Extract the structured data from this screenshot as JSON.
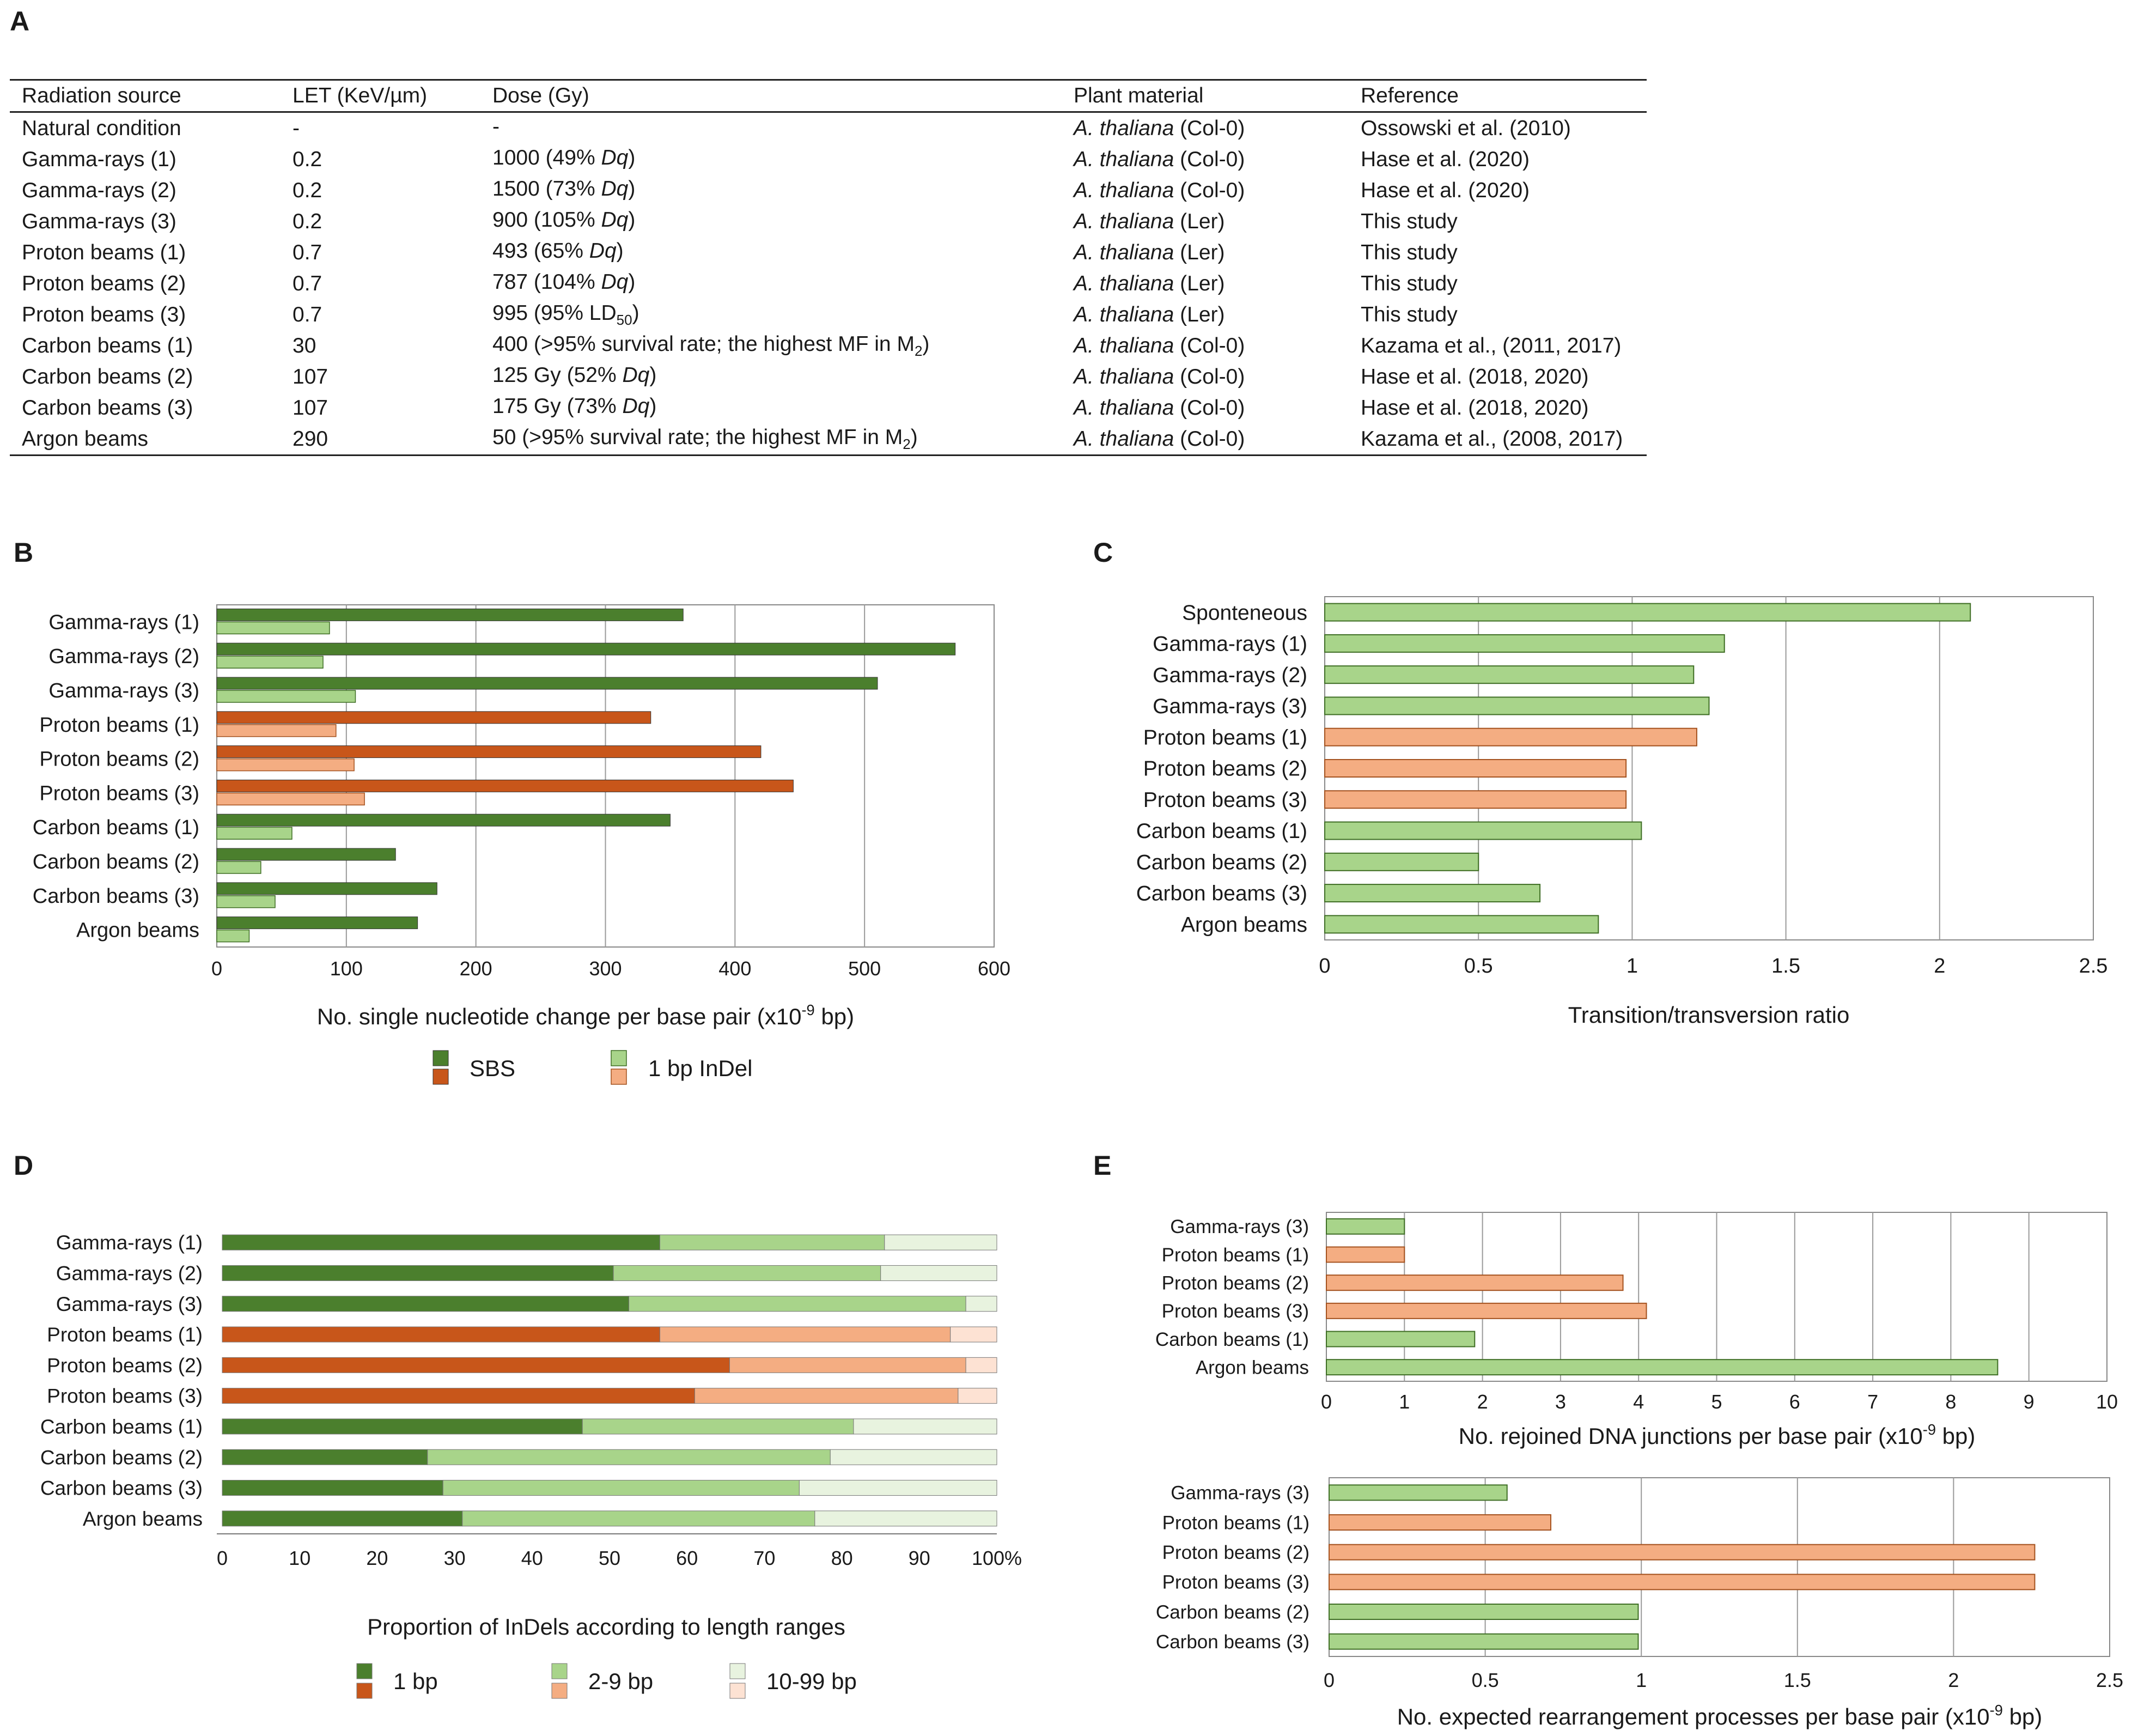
{
  "panels": {
    "a": "A",
    "b": "B",
    "c": "C",
    "d": "D",
    "e": "E"
  },
  "colors": {
    "gamma_dark": "#4b7f2d",
    "gamma_mid": "#a8d48a",
    "gamma_light": "#e8f3df",
    "proton_dark": "#c8561a",
    "proton_mid": "#f4ad82",
    "proton_light": "#fde2d3",
    "grid": "#9a9a9a",
    "frame": "#888888"
  },
  "table": {
    "headers": [
      "Radiation source",
      "LET (KeV/µm)",
      "Dose (Gy)",
      "Plant material",
      "Reference"
    ],
    "rows": [
      {
        "source": "Natural condition",
        "let": "-",
        "dose_pre": "-",
        "dose_em": "",
        "dose_sub": "",
        "dose_post": "",
        "plant_em": "A. thaliana",
        "plant_rest": " (Col-0)",
        "reference": "Ossowski et al. (2010)"
      },
      {
        "source": "Gamma-rays (1)",
        "let": "0.2",
        "dose_pre": "1000 (49% ",
        "dose_em": "Dq",
        "dose_sub": "",
        "dose_post": ")",
        "plant_em": "A. thaliana",
        "plant_rest": " (Col-0)",
        "reference": "Hase et al. (2020)"
      },
      {
        "source": "Gamma-rays (2)",
        "let": "0.2",
        "dose_pre": "1500 (73% ",
        "dose_em": "Dq",
        "dose_sub": "",
        "dose_post": ")",
        "plant_em": "A. thaliana",
        "plant_rest": " (Col-0)",
        "reference": "Hase et al. (2020)"
      },
      {
        "source": "Gamma-rays (3)",
        "let": "0.2",
        "dose_pre": "900 (105% ",
        "dose_em": "Dq",
        "dose_sub": "",
        "dose_post": ")",
        "plant_em": "A. thaliana",
        "plant_rest": " (Ler)",
        "reference": "This study"
      },
      {
        "source": "Proton beams (1)",
        "let": "0.7",
        "dose_pre": "493 (65% ",
        "dose_em": "Dq",
        "dose_sub": "",
        "dose_post": ")",
        "plant_em": "A. thaliana",
        "plant_rest": " (Ler)",
        "reference": "This study"
      },
      {
        "source": "Proton beams (2)",
        "let": "0.7",
        "dose_pre": "787 (104% ",
        "dose_em": "Dq",
        "dose_sub": "",
        "dose_post": ")",
        "plant_em": "A. thaliana",
        "plant_rest": " (Ler)",
        "reference": "This study"
      },
      {
        "source": "Proton beams (3)",
        "let": "0.7",
        "dose_pre": "995 (95% LD",
        "dose_em": "",
        "dose_sub": "50",
        "dose_post": ")",
        "plant_em": "A. thaliana",
        "plant_rest": " (Ler)",
        "reference": "This study"
      },
      {
        "source": "Carbon beams (1)",
        "let": "30",
        "dose_pre": "400 (>95% survival rate; the highest MF in M",
        "dose_em": "",
        "dose_sub": "2",
        "dose_post": ")",
        "plant_em": "A. thaliana",
        "plant_rest": " (Col-0)",
        "reference": "Kazama et al., (2011, 2017)"
      },
      {
        "source": "Carbon beams (2)",
        "let": "107",
        "dose_pre": "125 Gy (52% ",
        "dose_em": "Dq",
        "dose_sub": "",
        "dose_post": ")",
        "plant_em": "A. thaliana",
        "plant_rest": " (Col-0)",
        "reference": "Hase et al. (2018, 2020)"
      },
      {
        "source": "Carbon beams (3)",
        "let": "107",
        "dose_pre": "175 Gy (73% ",
        "dose_em": "Dq",
        "dose_sub": "",
        "dose_post": ")",
        "plant_em": "A. thaliana",
        "plant_rest": " (Col-0)",
        "reference": "Hase et al. (2018, 2020)"
      },
      {
        "source": "Argon beams",
        "let": "290",
        "dose_pre": "50 (>95% survival rate; the highest MF in M",
        "dose_em": "",
        "dose_sub": "2",
        "dose_post": ")",
        "plant_em": "A. thaliana",
        "plant_rest": " (Col-0)",
        "reference": "Kazama et al., (2008, 2017)"
      }
    ]
  },
  "chart_data": [
    {
      "id": "B",
      "type": "bar",
      "orientation": "horizontal",
      "categories": [
        "Gamma-rays (1)",
        "Gamma-rays (2)",
        "Gamma-rays (3)",
        "Proton beams (1)",
        "Proton beams (2)",
        "Proton beams (3)",
        "Carbon beams (1)",
        "Carbon beams (2)",
        "Carbon beams (3)",
        "Argon beams"
      ],
      "groups": [
        "gamma",
        "gamma",
        "gamma",
        "proton",
        "proton",
        "proton",
        "gamma",
        "gamma",
        "gamma",
        "gamma"
      ],
      "series": [
        {
          "name": "SBS",
          "values": [
            360,
            570,
            510,
            335,
            420,
            445,
            350,
            138,
            170,
            155
          ]
        },
        {
          "name": "1 bp InDel",
          "values": [
            87,
            82,
            107,
            92,
            106,
            114,
            58,
            34,
            45,
            25
          ]
        }
      ],
      "xlim": [
        0,
        600
      ],
      "xticks": [
        0,
        100,
        200,
        300,
        400,
        500,
        600
      ],
      "xlabel": "No. single nucleotide change per base pair (x10",
      "xlabel_sup": "-9",
      "xlabel_end": " bp)",
      "legend": [
        "SBS",
        "1 bp InDel"
      ]
    },
    {
      "id": "C",
      "type": "bar",
      "orientation": "horizontal",
      "categories": [
        "Sponteneous",
        "Gamma-rays (1)",
        "Gamma-rays (2)",
        "Gamma-rays (3)",
        "Proton beams (1)",
        "Proton beams (2)",
        "Proton beams (3)",
        "Carbon beams (1)",
        "Carbon beams (2)",
        "Carbon beams (3)",
        "Argon beams"
      ],
      "groups": [
        "gamma",
        "gamma",
        "gamma",
        "gamma",
        "proton",
        "proton",
        "proton",
        "gamma",
        "gamma",
        "gamma",
        "gamma"
      ],
      "values": [
        2.1,
        1.3,
        1.2,
        1.25,
        1.21,
        0.98,
        0.98,
        1.03,
        0.5,
        0.7,
        0.89
      ],
      "xlim": [
        0,
        2.5
      ],
      "xticks": [
        "0",
        "0.5",
        "1",
        "1.5",
        "2",
        "2.5"
      ],
      "xlabel": "Transition/transversion ratio"
    },
    {
      "id": "D",
      "type": "bar",
      "orientation": "horizontal",
      "stacked": true,
      "categories": [
        "Gamma-rays (1)",
        "Gamma-rays (2)",
        "Gamma-rays (3)",
        "Proton beams (1)",
        "Proton beams (2)",
        "Proton beams (3)",
        "Carbon beams (1)",
        "Carbon beams (2)",
        "Carbon beams (3)",
        "Argon beams"
      ],
      "groups": [
        "gamma",
        "gamma",
        "gamma",
        "proton",
        "proton",
        "proton",
        "gamma",
        "gamma",
        "gamma",
        "gamma"
      ],
      "series": [
        {
          "name": "1 bp",
          "values": [
            56.5,
            50.5,
            52.5,
            56.5,
            65.5,
            61,
            46.5,
            26.5,
            28.5,
            31
          ]
        },
        {
          "name": "2-9 bp",
          "values": [
            29,
            34.5,
            43.5,
            37.5,
            30.5,
            34,
            35,
            52,
            46,
            45.5
          ]
        },
        {
          "name": "10-99 bp",
          "values": [
            14.5,
            15,
            4,
            6,
            4,
            5,
            18.5,
            21.5,
            25.5,
            23.5
          ]
        }
      ],
      "xlim": [
        0,
        100
      ],
      "xticks": [
        "0",
        "10",
        "20",
        "30",
        "40",
        "50",
        "60",
        "70",
        "80",
        "90",
        "100%"
      ],
      "xlabel": "Proportion of InDels according to length ranges",
      "legend": [
        "1 bp",
        "2-9 bp",
        "10-99 bp"
      ]
    },
    {
      "id": "E1",
      "type": "bar",
      "orientation": "horizontal",
      "categories": [
        "Gamma-rays (3)",
        "Proton beams (1)",
        "Proton beams (2)",
        "Proton beams (3)",
        "Carbon beams (1)",
        "Argon beams"
      ],
      "groups": [
        "gamma",
        "proton",
        "proton",
        "proton",
        "gamma",
        "gamma"
      ],
      "values": [
        1,
        1,
        3.8,
        4.1,
        1.9,
        8.6
      ],
      "xlim": [
        0,
        10
      ],
      "xticks": [
        "0",
        "1",
        "2",
        "3",
        "4",
        "5",
        "6",
        "7",
        "8",
        "9",
        "10"
      ],
      "xlabel": "No. rejoined DNA junctions per base pair (x10",
      "xlabel_sup": "-9",
      "xlabel_end": " bp)"
    },
    {
      "id": "E2",
      "type": "bar",
      "orientation": "horizontal",
      "categories": [
        "Gamma-rays (3)",
        "Proton beams (1)",
        "Proton beams (2)",
        "Proton beams (3)",
        "Carbon beams (2)",
        "Carbon beams (3)"
      ],
      "groups": [
        "gamma",
        "proton",
        "proton",
        "proton",
        "gamma",
        "gamma"
      ],
      "values": [
        0.57,
        0.71,
        2.26,
        2.26,
        0.99,
        0.99
      ],
      "xlim": [
        0,
        2.5
      ],
      "xticks": [
        "0",
        "0.5",
        "1",
        "1.5",
        "2",
        "2.5"
      ],
      "xlabel": "No. expected rearrangement processes per base pair (x10",
      "xlabel_sup": "-9",
      "xlabel_end": " bp)"
    }
  ]
}
